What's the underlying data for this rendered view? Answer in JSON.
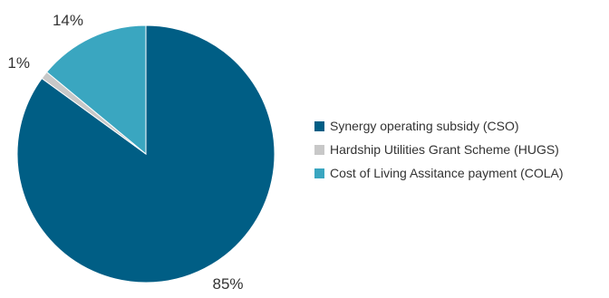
{
  "chart_data": {
    "type": "pie",
    "title": "",
    "slices": [
      {
        "label": "Synergy operating subsidy (CSO)",
        "value": 85,
        "value_label": "85%",
        "color": "#005e85"
      },
      {
        "label": "Hardship Utilities Grant Scheme (HUGS)",
        "value": 1,
        "value_label": "1%",
        "color": "#c8c8c8"
      },
      {
        "label": "Cost of Living Assitance payment (COLA)",
        "value": 14,
        "value_label": "14%",
        "color": "#3aa6c0"
      }
    ],
    "start_angle_deg": 0,
    "direction": "clockwise",
    "legend": {
      "position": "right"
    }
  }
}
